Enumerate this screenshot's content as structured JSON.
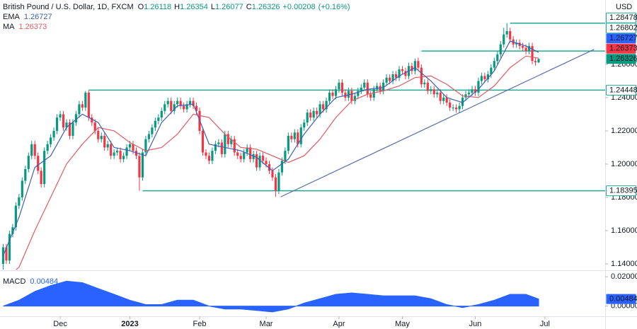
{
  "chart_data": {
    "type": "candlestick",
    "title": "British Pound / U.S. Dollar, 1D, FXCM",
    "ohlc_labels": [
      "O",
      "H",
      "L",
      "C"
    ],
    "change": "+0.00208",
    "change_pct": "(+0.16%)",
    "currency": "USD",
    "up_color": "#089981",
    "down_color": "#f23645",
    "open": [
      1.14,
      1.15,
      1.142,
      1.158,
      1.162,
      1.175,
      1.18,
      1.19,
      1.197,
      1.205,
      1.212,
      1.205,
      1.196,
      1.188,
      1.208,
      1.212,
      1.216,
      1.22,
      1.228,
      1.23,
      1.222,
      1.225,
      1.217,
      1.225,
      1.23,
      1.236,
      1.234,
      1.243,
      1.228,
      1.225,
      1.22,
      1.215,
      1.217,
      1.21,
      1.212,
      1.205,
      1.207,
      1.208,
      1.203,
      1.205,
      1.21,
      1.212,
      1.208,
      1.205,
      1.192,
      1.207,
      1.215,
      1.218,
      1.222,
      1.226,
      1.228,
      1.232,
      1.236,
      1.238,
      1.232,
      1.236,
      1.238,
      1.235,
      1.233,
      1.236,
      1.238,
      1.235,
      1.232,
      1.22,
      1.207,
      1.205,
      1.202,
      1.208,
      1.212,
      1.213,
      1.206,
      1.218,
      1.212,
      1.215,
      1.207,
      1.205,
      1.203,
      1.207,
      1.21,
      1.203,
      1.206,
      1.198,
      1.205,
      1.202,
      1.2,
      1.196,
      1.192,
      1.184,
      1.195,
      1.202,
      1.208,
      1.217,
      1.215,
      1.219,
      1.212,
      1.222,
      1.225,
      1.231,
      1.228,
      1.232,
      1.23,
      1.236,
      1.233,
      1.238,
      1.243,
      1.241,
      1.245,
      1.249,
      1.243,
      1.24,
      1.244,
      1.238,
      1.241,
      1.244,
      1.246,
      1.249,
      1.242,
      1.24,
      1.245,
      1.247,
      1.244,
      1.249,
      1.252,
      1.25,
      1.254,
      1.252,
      1.257,
      1.256,
      1.253,
      1.259,
      1.256,
      1.262,
      1.258,
      1.248,
      1.249,
      1.244,
      1.245,
      1.242,
      1.243,
      1.238,
      1.24,
      1.237,
      1.234,
      1.234,
      1.233,
      1.235,
      1.24,
      1.242,
      1.243,
      1.245,
      1.243,
      1.25,
      1.253,
      1.251,
      1.254,
      1.258,
      1.262,
      1.266,
      1.272,
      1.278,
      1.28,
      1.275,
      1.272,
      1.273,
      1.271,
      1.27,
      1.268,
      1.271,
      1.262,
      1.26118
    ],
    "high": [
      1.152,
      1.152,
      1.16,
      1.164,
      1.177,
      1.182,
      1.192,
      1.199,
      1.207,
      1.214,
      1.214,
      1.207,
      1.198,
      1.21,
      1.214,
      1.218,
      1.222,
      1.23,
      1.232,
      1.232,
      1.227,
      1.227,
      1.227,
      1.232,
      1.238,
      1.238,
      1.244,
      1.2445,
      1.23,
      1.227,
      1.222,
      1.219,
      1.219,
      1.214,
      1.214,
      1.209,
      1.21,
      1.21,
      1.207,
      1.212,
      1.214,
      1.214,
      1.21,
      1.207,
      1.209,
      1.217,
      1.22,
      1.224,
      1.228,
      1.23,
      1.234,
      1.238,
      1.24,
      1.24,
      1.238,
      1.24,
      1.24,
      1.237,
      1.238,
      1.24,
      1.24,
      1.237,
      1.234,
      1.222,
      1.209,
      1.207,
      1.21,
      1.214,
      1.215,
      1.215,
      1.22,
      1.22,
      1.217,
      1.217,
      1.209,
      1.207,
      1.209,
      1.212,
      1.212,
      1.208,
      1.208,
      1.207,
      1.207,
      1.204,
      1.202,
      1.198,
      1.194,
      1.197,
      1.204,
      1.21,
      1.219,
      1.219,
      1.221,
      1.221,
      1.224,
      1.227,
      1.233,
      1.233,
      1.234,
      1.234,
      1.238,
      1.238,
      1.24,
      1.245,
      1.245,
      1.247,
      1.251,
      1.251,
      1.245,
      1.246,
      1.246,
      1.243,
      1.246,
      1.248,
      1.251,
      1.251,
      1.244,
      1.247,
      1.249,
      1.249,
      1.251,
      1.254,
      1.254,
      1.256,
      1.256,
      1.259,
      1.259,
      1.258,
      1.261,
      1.261,
      1.2635,
      1.264,
      1.26,
      1.251,
      1.251,
      1.247,
      1.247,
      1.245,
      1.245,
      1.242,
      1.242,
      1.239,
      1.236,
      1.236,
      1.237,
      1.242,
      1.244,
      1.245,
      1.247,
      1.247,
      1.252,
      1.255,
      1.255,
      1.256,
      1.26,
      1.264,
      1.268,
      1.274,
      1.282,
      1.2848,
      1.282,
      1.277,
      1.275,
      1.275,
      1.273,
      1.272,
      1.273,
      1.273,
      1.264,
      1.26354
    ],
    "low": [
      1.13,
      1.14,
      1.14,
      1.156,
      1.16,
      1.173,
      1.178,
      1.188,
      1.195,
      1.203,
      1.203,
      1.194,
      1.186,
      1.186,
      1.206,
      1.21,
      1.214,
      1.218,
      1.226,
      1.22,
      1.22,
      1.215,
      1.215,
      1.223,
      1.228,
      1.232,
      1.232,
      1.226,
      1.223,
      1.218,
      1.213,
      1.213,
      1.208,
      1.208,
      1.203,
      1.203,
      1.205,
      1.201,
      1.201,
      1.203,
      1.208,
      1.206,
      1.203,
      1.184,
      1.19,
      1.205,
      1.213,
      1.216,
      1.22,
      1.224,
      1.226,
      1.23,
      1.234,
      1.23,
      1.23,
      1.234,
      1.233,
      1.231,
      1.231,
      1.234,
      1.233,
      1.23,
      1.218,
      1.205,
      1.203,
      1.2,
      1.2,
      1.206,
      1.21,
      1.204,
      1.204,
      1.21,
      1.21,
      1.205,
      1.203,
      1.201,
      1.201,
      1.205,
      1.201,
      1.201,
      1.196,
      1.196,
      1.2,
      1.198,
      1.194,
      1.19,
      1.1803,
      1.182,
      1.193,
      1.2,
      1.206,
      1.213,
      1.213,
      1.21,
      1.21,
      1.22,
      1.223,
      1.226,
      1.226,
      1.228,
      1.228,
      1.231,
      1.231,
      1.236,
      1.239,
      1.239,
      1.243,
      1.241,
      1.238,
      1.238,
      1.236,
      1.236,
      1.239,
      1.242,
      1.244,
      1.24,
      1.238,
      1.238,
      1.243,
      1.242,
      1.242,
      1.247,
      1.248,
      1.248,
      1.25,
      1.25,
      1.254,
      1.251,
      1.251,
      1.254,
      1.254,
      1.256,
      1.246,
      1.246,
      1.242,
      1.242,
      1.24,
      1.24,
      1.236,
      1.236,
      1.235,
      1.232,
      1.232,
      1.231,
      1.231,
      1.233,
      1.238,
      1.24,
      1.241,
      1.241,
      1.241,
      1.248,
      1.249,
      1.249,
      1.252,
      1.256,
      1.26,
      1.264,
      1.27,
      1.276,
      1.273,
      1.27,
      1.27,
      1.269,
      1.268,
      1.266,
      1.266,
      1.26,
      1.2592,
      1.26077
    ],
    "close": [
      1.15,
      1.142,
      1.158,
      1.162,
      1.175,
      1.18,
      1.19,
      1.197,
      1.205,
      1.212,
      1.205,
      1.196,
      1.188,
      1.208,
      1.212,
      1.216,
      1.22,
      1.228,
      1.23,
      1.222,
      1.225,
      1.217,
      1.225,
      1.23,
      1.236,
      1.234,
      1.243,
      1.228,
      1.225,
      1.22,
      1.215,
      1.217,
      1.21,
      1.212,
      1.205,
      1.207,
      1.208,
      1.203,
      1.205,
      1.21,
      1.212,
      1.208,
      1.205,
      1.192,
      1.207,
      1.215,
      1.218,
      1.222,
      1.226,
      1.228,
      1.232,
      1.236,
      1.238,
      1.232,
      1.236,
      1.238,
      1.235,
      1.233,
      1.236,
      1.238,
      1.235,
      1.232,
      1.22,
      1.207,
      1.205,
      1.202,
      1.208,
      1.212,
      1.213,
      1.206,
      1.218,
      1.212,
      1.215,
      1.207,
      1.205,
      1.203,
      1.207,
      1.21,
      1.203,
      1.206,
      1.198,
      1.205,
      1.202,
      1.2,
      1.196,
      1.192,
      1.184,
      1.195,
      1.202,
      1.208,
      1.217,
      1.215,
      1.219,
      1.212,
      1.222,
      1.225,
      1.231,
      1.228,
      1.232,
      1.23,
      1.236,
      1.233,
      1.238,
      1.243,
      1.241,
      1.245,
      1.249,
      1.243,
      1.24,
      1.244,
      1.238,
      1.241,
      1.244,
      1.246,
      1.249,
      1.242,
      1.24,
      1.245,
      1.247,
      1.244,
      1.249,
      1.252,
      1.25,
      1.254,
      1.252,
      1.257,
      1.256,
      1.253,
      1.259,
      1.256,
      1.262,
      1.258,
      1.248,
      1.249,
      1.244,
      1.245,
      1.242,
      1.243,
      1.238,
      1.24,
      1.237,
      1.234,
      1.234,
      1.233,
      1.235,
      1.24,
      1.242,
      1.243,
      1.245,
      1.243,
      1.25,
      1.253,
      1.251,
      1.254,
      1.258,
      1.262,
      1.266,
      1.272,
      1.278,
      1.28,
      1.275,
      1.272,
      1.273,
      1.271,
      1.27,
      1.268,
      1.271,
      1.262,
      1.2612,
      1.26326
    ],
    "xlim": [
      -1,
      190
    ],
    "xticks": [
      {
        "value": 18,
        "label": "Dec"
      },
      {
        "value": 40,
        "label": "2023"
      },
      {
        "value": 62,
        "label": "Feb"
      },
      {
        "value": 83,
        "label": "Mar"
      },
      {
        "value": 106,
        "label": "Apr"
      },
      {
        "value": 126,
        "label": "May"
      },
      {
        "value": 149,
        "label": "Jun"
      },
      {
        "value": 171,
        "label": "Jul"
      }
    ],
    "ylim": [
      1.137,
      1.2987
    ],
    "yticks": [
      {
        "value": 1.14,
        "label": "1.14000"
      },
      {
        "value": 1.16,
        "label": "1.16000"
      },
      {
        "value": 1.18,
        "label": "1.18000"
      },
      {
        "value": 1.2,
        "label": "1.20000"
      },
      {
        "value": 1.22,
        "label": "1.22000"
      },
      {
        "value": 1.24,
        "label": "1.24000"
      },
      {
        "value": 1.26,
        "label": "1.26000"
      }
    ],
    "ema": {
      "name": "EMA",
      "color": "#3f5fb0",
      "x": [
        0,
        5,
        10,
        15,
        20,
        25,
        30,
        35,
        40,
        45,
        50,
        55,
        60,
        65,
        70,
        75,
        80,
        85,
        90,
        95,
        100,
        105,
        110,
        115,
        120,
        125,
        130,
        135,
        140,
        145,
        150,
        155,
        160,
        165,
        169
      ],
      "values": [
        1.145,
        1.168,
        1.198,
        1.205,
        1.222,
        1.23,
        1.225,
        1.21,
        1.208,
        1.205,
        1.225,
        1.235,
        1.236,
        1.212,
        1.21,
        1.208,
        1.204,
        1.196,
        1.203,
        1.218,
        1.23,
        1.24,
        1.242,
        1.245,
        1.246,
        1.253,
        1.258,
        1.25,
        1.24,
        1.237,
        1.245,
        1.256,
        1.274,
        1.271,
        1.26727
      ]
    },
    "ma": {
      "name": "MA",
      "color": "#e05a64",
      "x": [
        0,
        5,
        10,
        15,
        20,
        25,
        30,
        35,
        40,
        45,
        50,
        55,
        60,
        65,
        70,
        75,
        80,
        85,
        90,
        95,
        100,
        105,
        110,
        115,
        120,
        125,
        130,
        135,
        140,
        145,
        150,
        155,
        160,
        165,
        169
      ],
      "values": [
        1.13,
        1.138,
        1.16,
        1.18,
        1.2,
        1.212,
        1.222,
        1.22,
        1.213,
        1.208,
        1.21,
        1.218,
        1.23,
        1.228,
        1.218,
        1.21,
        1.209,
        1.205,
        1.201,
        1.205,
        1.215,
        1.228,
        1.238,
        1.242,
        1.244,
        1.247,
        1.252,
        1.253,
        1.248,
        1.241,
        1.24,
        1.247,
        1.258,
        1.265,
        1.26373
      ]
    },
    "levels": [
      {
        "value": 1.28478,
        "start": 160
      },
      {
        "value": 1.26802,
        "start": 132
      },
      {
        "value": 1.24448,
        "start": 27
      },
      {
        "value": 1.18395,
        "start": 44
      }
    ],
    "level_color": "#22ab94",
    "trendline": {
      "color": "#5b6fa8",
      "x": [
        87.6,
        186.5
      ],
      "values": [
        1.1803,
        1.269
      ]
    },
    "macd": {
      "name": "MACD",
      "color": "#2962ff",
      "x": [
        0,
        5,
        10,
        15,
        20,
        25,
        30,
        35,
        40,
        45,
        50,
        55,
        60,
        65,
        70,
        75,
        80,
        85,
        90,
        95,
        100,
        105,
        110,
        115,
        120,
        125,
        130,
        135,
        140,
        145,
        150,
        155,
        160,
        165,
        169
      ],
      "values": [
        0.0,
        0.004,
        0.01,
        0.014,
        0.017,
        0.016,
        0.012,
        0.008,
        0.004,
        0.001,
        0.001,
        0.004,
        0.004,
        0.0,
        -0.002,
        -0.002,
        -0.003,
        -0.004,
        -0.002,
        0.002,
        0.005,
        0.008,
        0.009,
        0.008,
        0.007,
        0.007,
        0.007,
        0.005,
        0.001,
        -0.001,
        0.001,
        0.004,
        0.008,
        0.008,
        0.00484
      ],
      "ylim": [
        -0.006,
        0.023
      ],
      "yticks": [
        {
          "value": 0.02,
          "label": "0.02000"
        },
        {
          "value": 0,
          "label": "0.00000"
        }
      ]
    }
  }
}
